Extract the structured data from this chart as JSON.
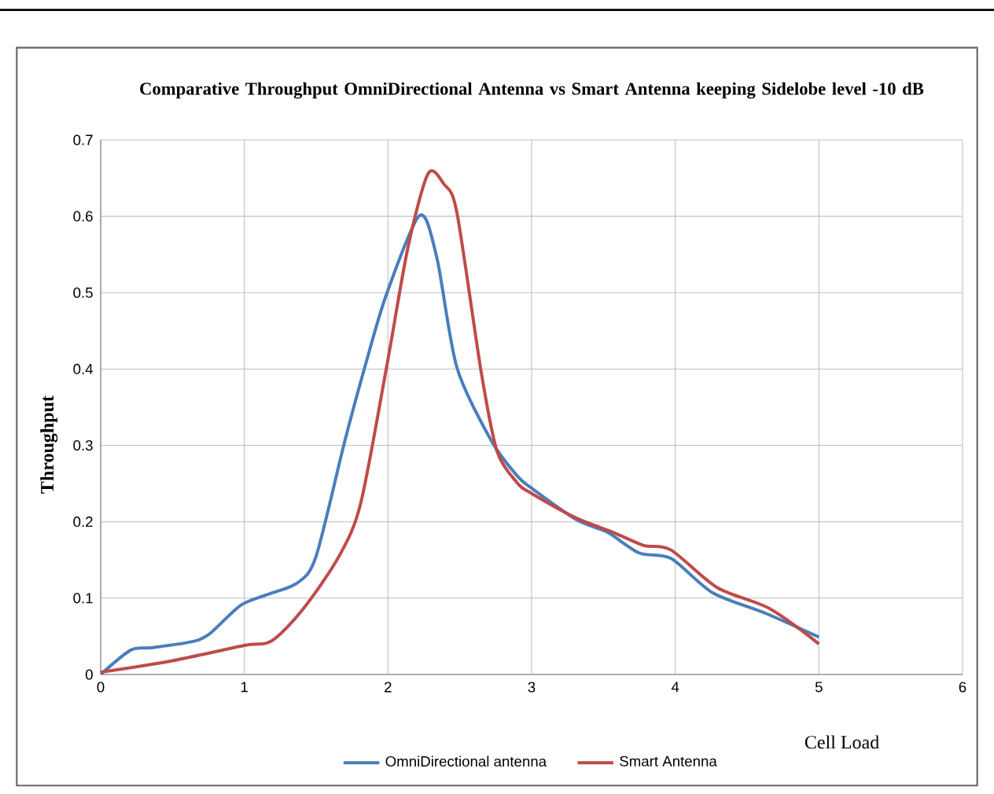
{
  "chart_data": {
    "type": "line",
    "title": "Comparative Throughput OmniDirectional Antenna vs Smart Antenna keeping Sidelobe level -10 dB",
    "xlabel": "Cell Load",
    "ylabel": "Throughput",
    "xlim": [
      0,
      6
    ],
    "xticks": [
      0,
      1,
      2,
      3,
      4,
      5,
      6
    ],
    "ylim": [
      0,
      0.7
    ],
    "yticks": [
      0,
      0.1,
      0.2,
      0.3,
      0.4,
      0.5,
      0.6,
      0.7
    ],
    "grid": true,
    "legend": "bottom",
    "marker": "none",
    "line_style": "solid",
    "series": [
      {
        "name": "OmniDirectional antenna",
        "color": "#4a7ebb",
        "x": [
          0,
          0.21,
          0.35,
          0.61,
          0.75,
          0.97,
          1.15,
          1.37,
          1.5,
          1.7,
          1.85,
          1.99,
          2.22,
          2.34,
          2.48,
          2.72,
          2.9,
          3,
          3.31,
          3.53,
          3.75,
          3.97,
          4.26,
          4.63,
          5
        ],
        "values": [
          0,
          0.032,
          0.035,
          0.042,
          0.052,
          0.09,
          0.104,
          0.12,
          0.155,
          0.306,
          0.41,
          0.498,
          0.601,
          0.546,
          0.402,
          0.306,
          0.26,
          0.244,
          0.203,
          0.186,
          0.159,
          0.152,
          0.107,
          0.08,
          0.049
        ]
      },
      {
        "name": "Smart Antenna",
        "color": "#be4b48",
        "x": [
          0,
          0.5,
          1,
          1.19,
          1.41,
          1.66,
          1.81,
          1.99,
          2.14,
          2.28,
          2.39,
          2.48,
          2.65,
          2.76,
          2.9,
          3,
          3.31,
          3.57,
          3.78,
          3.97,
          4.29,
          4.66,
          5
        ],
        "values": [
          0.003,
          0.018,
          0.038,
          0.044,
          0.086,
          0.155,
          0.224,
          0.402,
          0.56,
          0.656,
          0.642,
          0.605,
          0.395,
          0.292,
          0.251,
          0.237,
          0.205,
          0.186,
          0.169,
          0.163,
          0.114,
          0.086,
          0.04
        ]
      }
    ]
  }
}
